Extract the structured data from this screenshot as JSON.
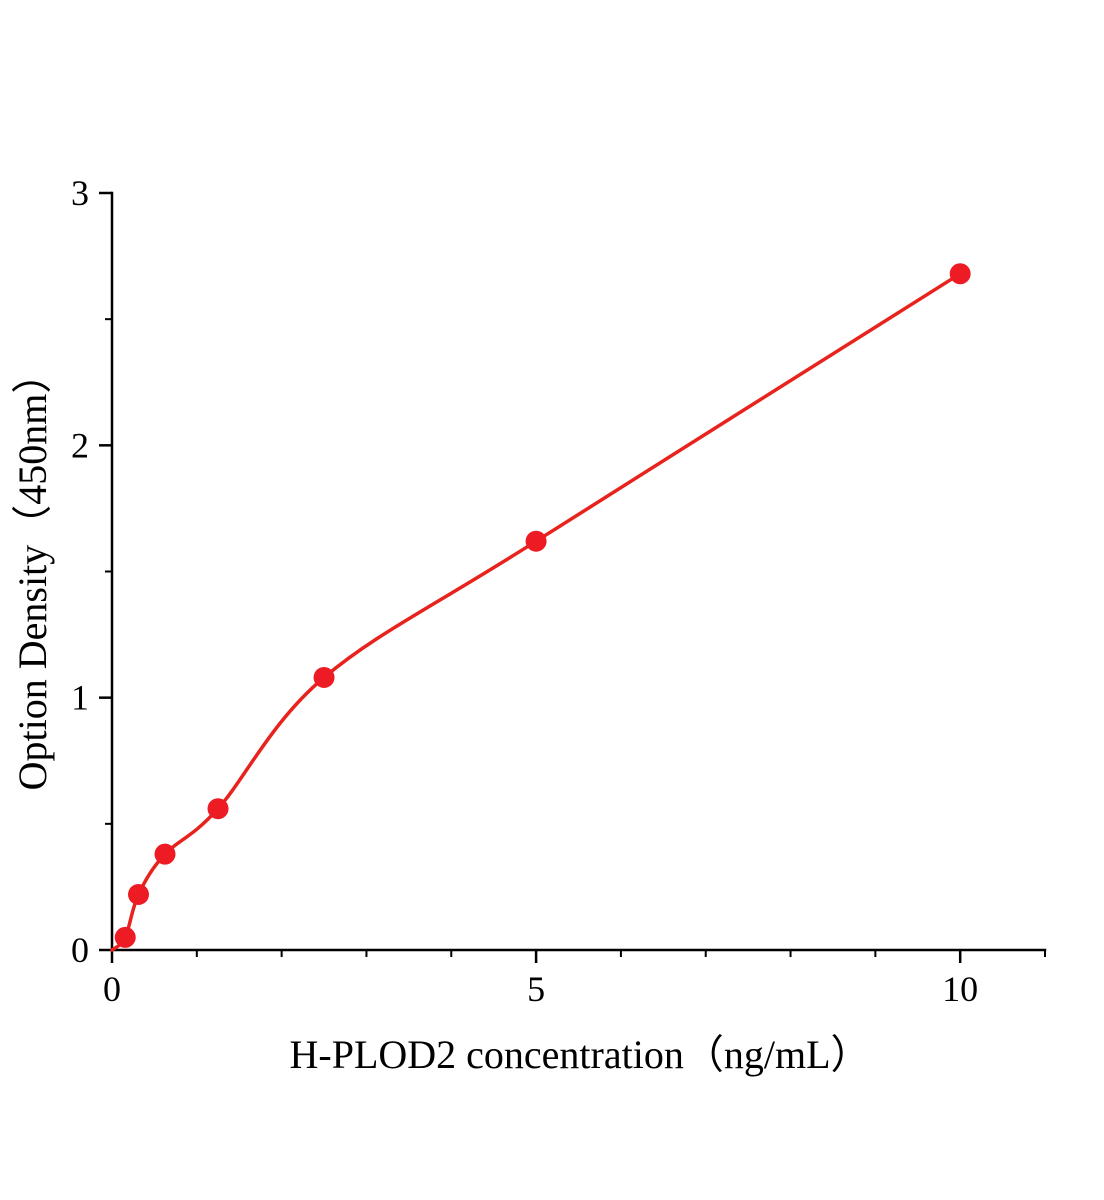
{
  "chart_data": {
    "type": "scatter",
    "title": "",
    "xlabel": "H-PLOD2 concentration（ng/mL）",
    "ylabel": "Option Density（450nm）",
    "x": [
      0.156,
      0.3125,
      0.625,
      1.25,
      2.5,
      5,
      10
    ],
    "y": [
      0.05,
      0.22,
      0.38,
      0.56,
      1.08,
      1.62,
      2.68
    ],
    "curve_origin": [
      0,
      0
    ],
    "xlim": [
      0,
      11
    ],
    "ylim": [
      0,
      3
    ],
    "xticks": {
      "values": [
        0,
        5,
        10
      ],
      "labels": [
        "0",
        "5",
        "10"
      ]
    },
    "yticks": {
      "values": [
        0,
        1,
        2,
        3
      ],
      "labels": [
        "0",
        "1",
        "2",
        "3"
      ]
    },
    "x_minor_step": 1,
    "y_minor_step": 0.5,
    "grid": false,
    "legend": null,
    "point_color": "#ed1c24",
    "curve_color": "#e8231d",
    "axis_color": "#000000"
  }
}
